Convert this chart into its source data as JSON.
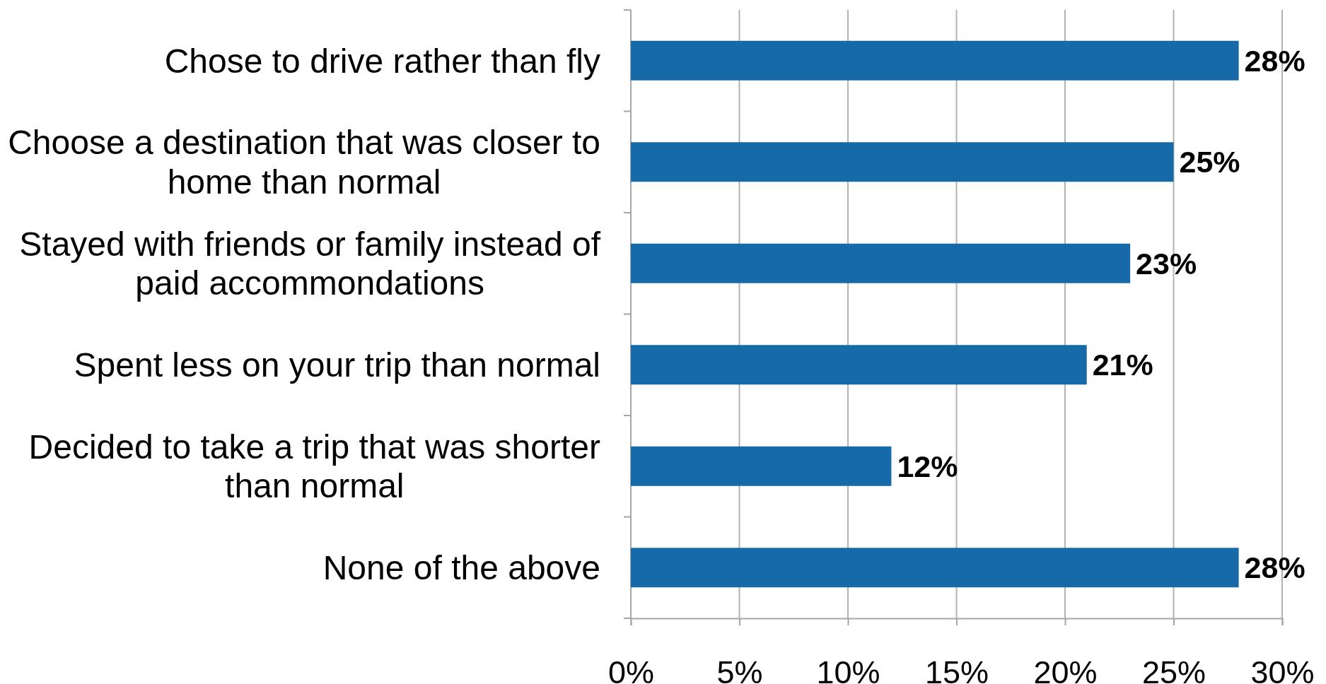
{
  "chart_data": {
    "type": "bar",
    "orientation": "horizontal",
    "categories": [
      "Chose to drive rather than fly",
      "Choose a destination that was closer to home than normal",
      "Stayed with friends or family instead of paid accommondations",
      "Spent less on your trip than normal",
      "Decided to take a trip that was shorter than normal",
      "None of the above"
    ],
    "values": [
      28,
      25,
      23,
      21,
      12,
      28
    ],
    "color": "#166aa7",
    "xlim": [
      0,
      30
    ],
    "xticks": [
      {
        "value": 0,
        "label": "0%"
      },
      {
        "value": 5,
        "label": "5%"
      },
      {
        "value": 10,
        "label": "10%"
      },
      {
        "value": 15,
        "label": "15%"
      },
      {
        "value": 20,
        "label": "20%"
      },
      {
        "value": 25,
        "label": "25%"
      },
      {
        "value": 30,
        "label": "30%"
      }
    ],
    "grid": "x",
    "value_labels": [
      "28%",
      "25%",
      "23%",
      "21%",
      "12%",
      "28%"
    ]
  }
}
